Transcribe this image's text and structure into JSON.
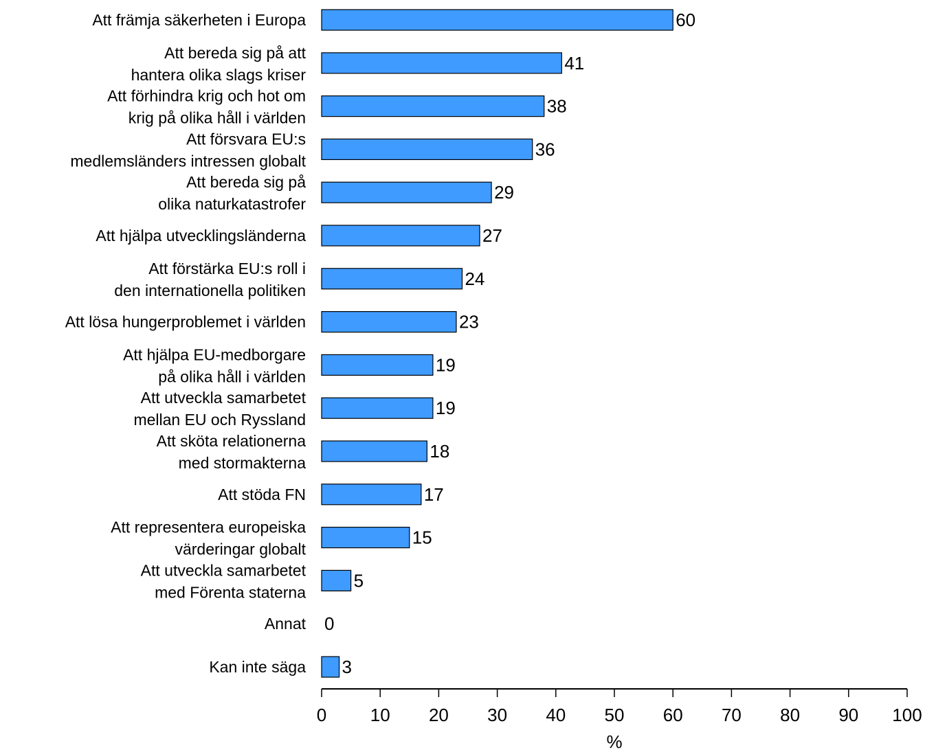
{
  "chart_data": {
    "type": "bar",
    "orientation": "horizontal",
    "categories": [
      [
        "Att främja säkerheten i Europa"
      ],
      [
        "Att bereda sig på att",
        "hantera olika slags kriser"
      ],
      [
        "Att förhindra krig och hot om",
        "krig på olika håll i världen"
      ],
      [
        "Att försvara EU:s",
        "medlemsländers intressen globalt"
      ],
      [
        "Att bereda sig på",
        "olika naturkatastrofer"
      ],
      [
        "Att hjälpa utvecklingsländerna"
      ],
      [
        "Att förstärka EU:s roll i",
        "den internationella politiken"
      ],
      [
        "Att lösa hungerproblemet i världen"
      ],
      [
        "Att hjälpa EU-medborgare",
        "på olika håll i världen"
      ],
      [
        "Att utveckla samarbetet",
        "mellan EU och Ryssland"
      ],
      [
        "Att sköta relationerna",
        "med stormakterna"
      ],
      [
        "Att stöda FN"
      ],
      [
        "Att representera europeiska",
        "värderingar globalt"
      ],
      [
        "Att utveckla samarbetet",
        "med Förenta staterna"
      ],
      [
        "Annat"
      ],
      [
        "Kan inte säga"
      ]
    ],
    "values": [
      60,
      41,
      38,
      36,
      29,
      27,
      24,
      23,
      19,
      19,
      18,
      17,
      15,
      5,
      0,
      3
    ],
    "xlabel": "%",
    "xlim": [
      0,
      100
    ],
    "xticks": [
      0,
      10,
      20,
      30,
      40,
      50,
      60,
      70,
      80,
      90,
      100
    ],
    "bar_color": "#3f9bff",
    "bar_stroke": "#000000",
    "grid": false,
    "legend": "none"
  }
}
